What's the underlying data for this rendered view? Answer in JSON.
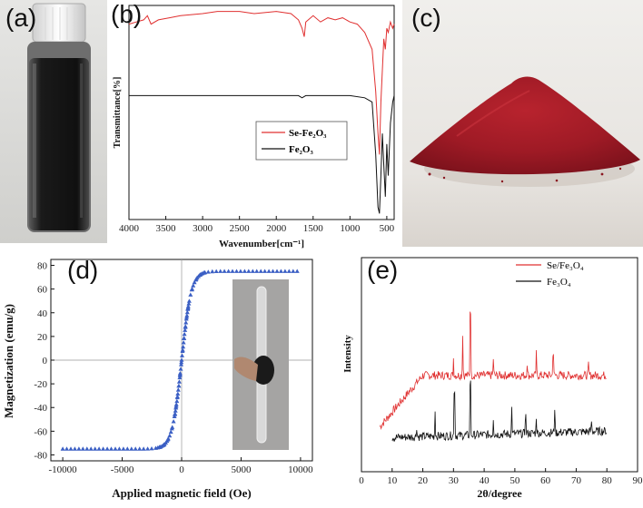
{
  "panels": {
    "a": {
      "label": "(a)"
    },
    "b": {
      "label": "(b)"
    },
    "c": {
      "label": "(c)"
    },
    "d": {
      "label": "(d)"
    },
    "e": {
      "label": "(e)"
    }
  },
  "chart_data": [
    {
      "panel": "b",
      "type": "line",
      "xlabel": "Wavenumber[cm⁻¹]",
      "ylabel": "Transmittance[%]",
      "xlim": [
        4000,
        400
      ],
      "xticks": [
        "4000",
        "3500",
        "3000",
        "2500",
        "2000",
        "1500",
        "1000",
        "500"
      ],
      "xtick_values": [
        4000,
        3500,
        3000,
        2500,
        2000,
        1500,
        1000,
        500
      ],
      "legend": [
        "Se-Fe₂O₃",
        "Fe₂O₃"
      ],
      "series": [
        {
          "name": "Se-Fe₂O₃",
          "color": "#e03030",
          "x": [
            4000,
            3900,
            3800,
            3750,
            3700,
            3600,
            3450,
            3300,
            3000,
            2800,
            2500,
            2300,
            2000,
            1800,
            1700,
            1650,
            1620,
            1600,
            1500,
            1400,
            1300,
            1200,
            1100,
            1000,
            900,
            800,
            700,
            650,
            620,
            600,
            580,
            560,
            540,
            520,
            500,
            480,
            450,
            420,
            400
          ],
          "y": [
            92,
            93,
            94,
            96,
            92,
            94,
            95,
            96,
            97,
            98,
            98,
            97,
            98,
            97,
            94,
            90,
            86,
            93,
            96,
            93,
            95,
            94,
            95,
            93,
            92,
            88,
            80,
            60,
            40,
            30,
            55,
            70,
            85,
            80,
            90,
            88,
            93,
            90,
            92
          ]
        },
        {
          "name": "Fe₂O₃",
          "color": "#111111",
          "x": [
            4000,
            3500,
            3000,
            2500,
            2000,
            1700,
            1650,
            1600,
            1500,
            1200,
            1000,
            800,
            700,
            650,
            620,
            600,
            580,
            560,
            540,
            520,
            500,
            480,
            450,
            420,
            400
          ],
          "y": [
            58,
            58,
            58,
            58,
            58,
            58,
            57,
            58,
            58,
            58,
            58,
            57,
            55,
            30,
            5,
            2,
            20,
            40,
            25,
            10,
            35,
            20,
            45,
            55,
            58
          ]
        }
      ]
    },
    {
      "panel": "d",
      "type": "scatter",
      "xlabel": "Applied magnetic field (Oe)",
      "ylabel": "Magnetization (emu/g)",
      "xlim": [
        -11000,
        11000
      ],
      "ylim": [
        -85,
        85
      ],
      "xticks": [
        "-10000",
        "-5000",
        "0",
        "5000",
        "10000"
      ],
      "xtick_values": [
        -10000,
        -5000,
        0,
        5000,
        10000
      ],
      "yticks": [
        "80",
        "60",
        "40",
        "20",
        "0",
        "-20",
        "-40",
        "-60",
        "-80"
      ],
      "ytick_values": [
        80,
        60,
        40,
        20,
        0,
        -20,
        -40,
        -60,
        -80
      ],
      "saturation_magnetization": 75,
      "field_scale": 800
    },
    {
      "panel": "e",
      "type": "line",
      "xlabel": "2θ/degree",
      "ylabel": "Intensity",
      "xlim": [
        0,
        90
      ],
      "ylim": [
        0,
        100
      ],
      "xticks": [
        "0",
        "10",
        "20",
        "30",
        "40",
        "50",
        "60",
        "70",
        "80",
        "90"
      ],
      "xtick_values": [
        0,
        10,
        20,
        30,
        40,
        50,
        60,
        70,
        80,
        90
      ],
      "legend": [
        "Se/Fe₃O₄",
        "Fe₃O₄"
      ],
      "series": [
        {
          "name": "Se/Fe₃O₄",
          "color": "#e03030",
          "baseline_start": 28,
          "baseline_end": 45,
          "start_x": 6,
          "peaks": [
            {
              "x": 30,
              "h": 8
            },
            {
              "x": 33,
              "h": 20
            },
            {
              "x": 35.5,
              "h": 50
            },
            {
              "x": 43,
              "h": 8
            },
            {
              "x": 54,
              "h": 6
            },
            {
              "x": 57,
              "h": 10
            },
            {
              "x": 62.5,
              "h": 17
            },
            {
              "x": 74,
              "h": 5
            }
          ]
        },
        {
          "name": "Fe₃O₄",
          "color": "#111111",
          "baseline_start": 16,
          "baseline_end": 19,
          "start_x": 10,
          "peaks": [
            {
              "x": 18,
              "h": 5
            },
            {
              "x": 24,
              "h": 12
            },
            {
              "x": 30.3,
              "h": 35
            },
            {
              "x": 35.5,
              "h": 40
            },
            {
              "x": 43,
              "h": 8
            },
            {
              "x": 49,
              "h": 12
            },
            {
              "x": 53.5,
              "h": 13
            },
            {
              "x": 57,
              "h": 8
            },
            {
              "x": 63,
              "h": 12
            },
            {
              "x": 75,
              "h": 5
            }
          ]
        }
      ]
    }
  ]
}
